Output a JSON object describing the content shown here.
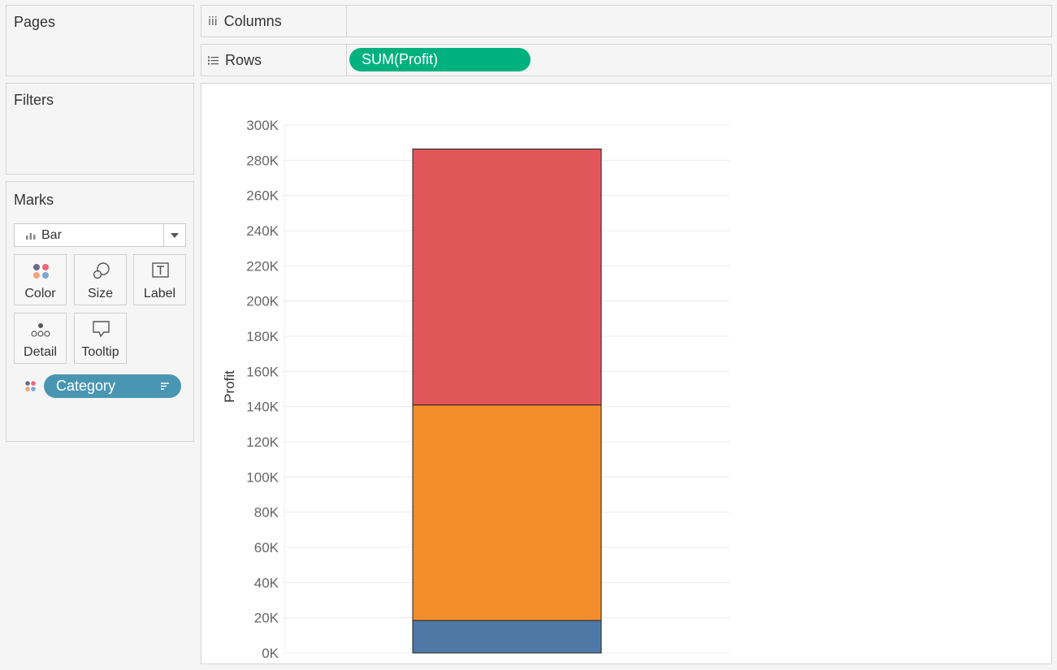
{
  "cards": {
    "pages": "Pages",
    "filters": "Filters",
    "marks": "Marks"
  },
  "shelves": {
    "columns": {
      "label": "Columns",
      "icon": "iii"
    },
    "rows": {
      "label": "Rows",
      "icon": "rows-list-icon",
      "pill": "SUM(Profit)"
    }
  },
  "marks": {
    "mark_type": "Bar",
    "buttons": {
      "color": "Color",
      "size": "Size",
      "label": "Label",
      "detail": "Detail",
      "tooltip": "Tooltip"
    },
    "pill": "Category"
  },
  "colors": {
    "rows_pill": "#00b180",
    "category_pill": "#4996b2",
    "furniture": "#4e79a7",
    "office_supplies": "#f28e2b",
    "technology": "#e15759"
  },
  "chart_data": {
    "type": "bar",
    "stacked": true,
    "categories": [
      ""
    ],
    "series": [
      {
        "values": [
          18451
        ]
      },
      {
        "values": [
          122491
        ]
      },
      {
        "values": [
          145455
        ]
      }
    ],
    "ylabel": "Profit",
    "ylim": [
      0,
      300000
    ],
    "yticks": [
      "0K",
      "20K",
      "40K",
      "60K",
      "80K",
      "100K",
      "120K",
      "140K",
      "160K",
      "180K",
      "200K",
      "220K",
      "240K",
      "260K",
      "280K",
      "300K"
    ],
    "grid": true
  }
}
